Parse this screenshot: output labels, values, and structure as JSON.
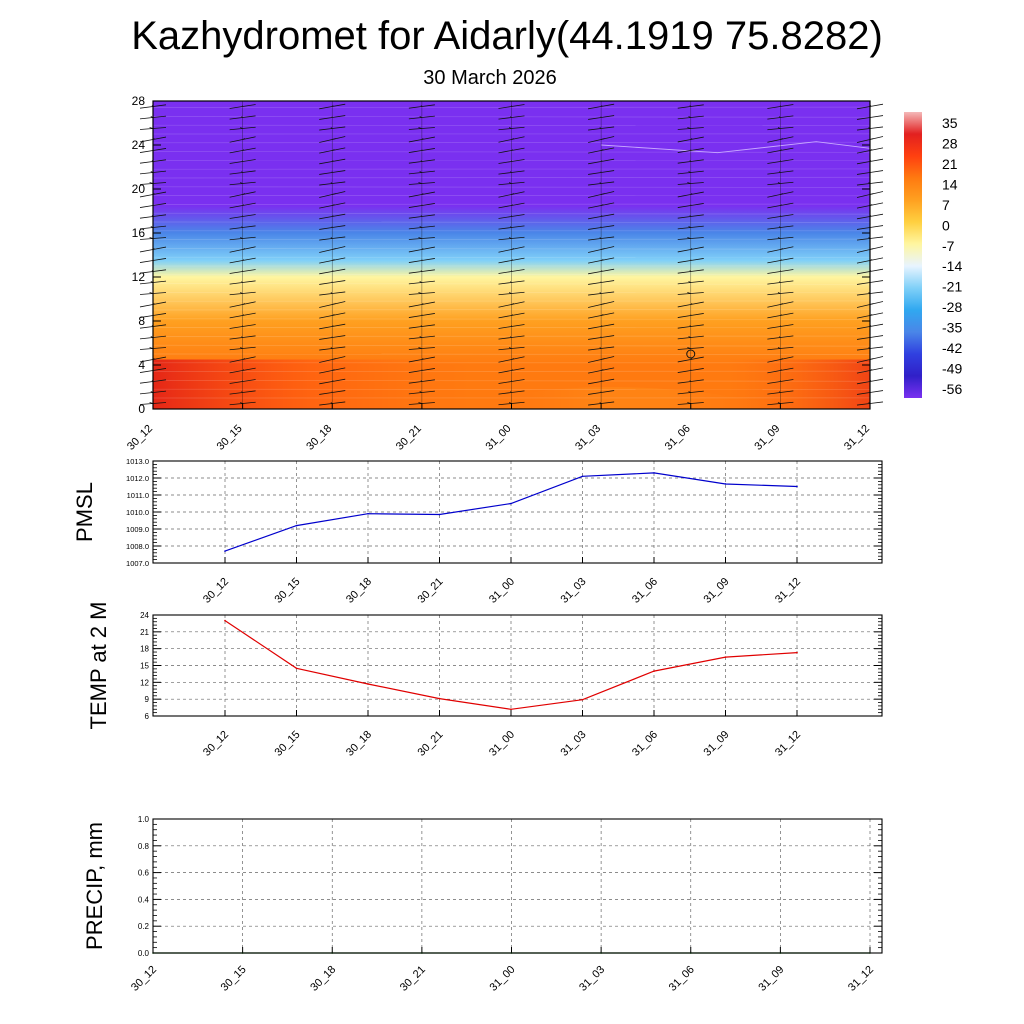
{
  "title": "Kazhydromet for Aidarly(44.1919 75.8282)",
  "date": "30 March 2026",
  "time_labels": [
    "30_12",
    "30_15",
    "30_18",
    "30_21",
    "31_00",
    "31_03",
    "31_06",
    "31_09",
    "31_12"
  ],
  "chart_data": [
    {
      "type": "heatmap",
      "name": "temperature-profile-contour",
      "y_range": [
        0,
        28
      ],
      "y_ticks": [
        "0",
        "4",
        "8",
        "12",
        "16",
        "20",
        "24",
        "28"
      ],
      "x": [
        "30_12",
        "30_15",
        "30_18",
        "30_21",
        "31_00",
        "31_03",
        "31_06",
        "31_09",
        "31_12"
      ],
      "colorbar_labels": [
        "35",
        "28",
        "21",
        "14",
        "7",
        "0",
        "-7",
        "-14",
        "-21",
        "-28",
        "-35",
        "-42",
        "-49",
        "-56"
      ],
      "colorbar_colors": [
        "#f4b8b8",
        "#e22020",
        "#ff4010",
        "#ff7a10",
        "#ffa020",
        "#ffd040",
        "#fff6a0",
        "#e8f4ff",
        "#80d0f8",
        "#30a8f0",
        "#4a86e8",
        "#3040e0",
        "#3020c8",
        "#7a30f0"
      ],
      "layers": [
        {
          "height": 0,
          "values": [
            30,
            24,
            20,
            16,
            14,
            16,
            18,
            20,
            24
          ]
        },
        {
          "height": 4,
          "values": [
            22,
            20,
            20,
            18,
            18,
            20,
            20,
            20,
            22
          ]
        },
        {
          "height": 8,
          "values": [
            12,
            12,
            12,
            12,
            12,
            12,
            12,
            12,
            12
          ]
        },
        {
          "height": 12,
          "values": [
            -6,
            -6,
            -6,
            -6,
            -6,
            -6,
            -6,
            -6,
            -6
          ]
        },
        {
          "height": 13.5,
          "values": [
            -16,
            -16,
            -16,
            -16,
            -16,
            -16,
            -16,
            -16,
            -16
          ]
        },
        {
          "height": 16,
          "values": [
            -30,
            -30,
            -30,
            -30,
            -30,
            -30,
            -30,
            -30,
            -30
          ]
        },
        {
          "height": 18.5,
          "values": [
            -58,
            -58,
            -58,
            -58,
            -58,
            -58,
            -58,
            -58,
            -58
          ]
        },
        {
          "height": 28,
          "values": [
            -60,
            -60,
            -60,
            -60,
            -60,
            -60,
            -60,
            -60,
            -60
          ]
        }
      ]
    },
    {
      "type": "line",
      "name": "pmsl",
      "ylabel": "PMSL",
      "ylim": [
        1007.0,
        1013.0
      ],
      "y_ticks": [
        "1007.0",
        "1008.0",
        "1009.0",
        "1010.0",
        "1011.0",
        "1012.0",
        "1013.0"
      ],
      "x": [
        "30_12",
        "30_15",
        "30_18",
        "30_21",
        "31_00",
        "31_03",
        "31_06",
        "31_09",
        "31_12"
      ],
      "values": [
        1007.7,
        1009.2,
        1009.9,
        1009.85,
        1010.5,
        1012.1,
        1012.3,
        1011.65,
        1011.5
      ],
      "color": "#0000cc"
    },
    {
      "type": "line",
      "name": "temp-2m",
      "ylabel": "TEMP at 2 M",
      "ylim": [
        6,
        24
      ],
      "y_ticks": [
        "6",
        "9",
        "12",
        "15",
        "18",
        "21",
        "24"
      ],
      "x": [
        "30_12",
        "30_15",
        "30_18",
        "30_21",
        "31_00",
        "31_03",
        "31_06",
        "31_09",
        "31_12"
      ],
      "values": [
        23.0,
        14.5,
        11.7,
        9.1,
        7.2,
        8.9,
        14.0,
        16.5,
        17.3
      ],
      "color": "#e00000"
    },
    {
      "type": "line",
      "name": "precip",
      "ylabel": "PRECIP, mm",
      "ylim": [
        0.0,
        1.0
      ],
      "y_ticks": [
        "0.0",
        "0.2",
        "0.4",
        "0.6",
        "0.8",
        "1.0"
      ],
      "x": [
        "30_12",
        "30_15",
        "30_18",
        "30_21",
        "31_00",
        "31_03",
        "31_06",
        "31_09",
        "31_12"
      ],
      "values": [
        0,
        0,
        0,
        0,
        0,
        0,
        0,
        0,
        0
      ],
      "color": "#006600"
    }
  ]
}
